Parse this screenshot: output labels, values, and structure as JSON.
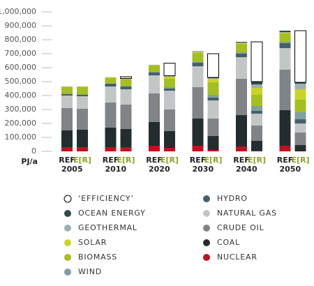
{
  "chart_data": {
    "type": "stacked-bar",
    "unit_label": "PJ/a",
    "categories": [
      "REF",
      "E[R]",
      "REF",
      "E[R]",
      "REF",
      "E[R]",
      "REF",
      "E[R]",
      "REF",
      "E[R]",
      "REF",
      "E[R]"
    ],
    "groups": [
      "2005",
      "2010",
      "2020",
      "2030",
      "2040",
      "2050"
    ],
    "ylim": [
      0,
      1000000
    ],
    "yticks": [
      0,
      {
        "value": 100000,
        "label": "100,000"
      },
      {
        "value": 200000,
        "label": "200,000"
      },
      {
        "value": 300000,
        "label": "300,000"
      },
      {
        "value": 400000,
        "label": "400,000"
      },
      {
        "value": 500000,
        "label": "500,000"
      },
      {
        "value": 600000,
        "label": "600,000"
      },
      {
        "value": 700000,
        "label": "700,000"
      },
      {
        "value": 800000,
        "label": "800,000"
      },
      {
        "value": 900000,
        "label": "900,000"
      },
      {
        "value": 1000000,
        "label": "1,000,000"
      }
    ],
    "series": [
      {
        "name": "NUCLEAR",
        "color": "#c0111f",
        "values": [
          28000,
          28000,
          30000,
          28000,
          40000,
          25000,
          40000,
          10000,
          35000,
          2000,
          40000,
          0
        ]
      },
      {
        "name": "COAL",
        "color": "#232d30",
        "values": [
          122000,
          127000,
          140000,
          132000,
          170000,
          120000,
          195000,
          100000,
          225000,
          73000,
          255000,
          45000
        ]
      },
      {
        "name": "CRUDE OIL",
        "color": "#808486",
        "values": [
          160000,
          150000,
          180000,
          175000,
          205000,
          155000,
          225000,
          125000,
          260000,
          110000,
          290000,
          90000
        ]
      },
      {
        "name": "NATURAL GAS",
        "color": "#c3c6c6",
        "values": [
          90000,
          90000,
          115000,
          110000,
          130000,
          135000,
          150000,
          130000,
          155000,
          85000,
          155000,
          65000
        ]
      },
      {
        "name": "HYDRO",
        "color": "#45606a",
        "values": [
          12000,
          12000,
          20000,
          20000,
          20000,
          15000,
          25000,
          20000,
          25000,
          20000,
          35000,
          30000
        ]
      },
      {
        "name": "WIND",
        "color": "#7fa0a0",
        "values": [
          1000,
          1000,
          2000,
          3000,
          5000,
          10000,
          8000,
          20000,
          10000,
          35000,
          10000,
          50000
        ]
      },
      {
        "name": "BIOMASS",
        "color": "#a5be21",
        "values": [
          50000,
          55000,
          40000,
          50000,
          45000,
          60000,
          62000,
          90000,
          60000,
          80000,
          60000,
          90000
        ]
      },
      {
        "name": "SOLAR",
        "color": "#c9d42b",
        "values": [
          1000,
          1000,
          3000,
          3000,
          3000,
          15000,
          5000,
          25000,
          5000,
          50000,
          5000,
          75000
        ]
      },
      {
        "name": "GEOTHERMAL",
        "color": "#9fb0b0",
        "values": [
          2000,
          2000,
          2000,
          2000,
          3000,
          5000,
          5000,
          5000,
          5000,
          25000,
          5000,
          40000
        ]
      },
      {
        "name": "OCEAN ENERGY",
        "color": "#2f4a48",
        "values": [
          0,
          0,
          0,
          0,
          0,
          2000,
          2000,
          5000,
          5000,
          20000,
          10000,
          10000
        ]
      },
      {
        "name": "‘EFFICIENCY’",
        "color": "#ffffff",
        "values": [
          null,
          null,
          null,
          12000,
          null,
          90000,
          null,
          170000,
          null,
          285000,
          null,
          370000
        ]
      }
    ]
  }
}
